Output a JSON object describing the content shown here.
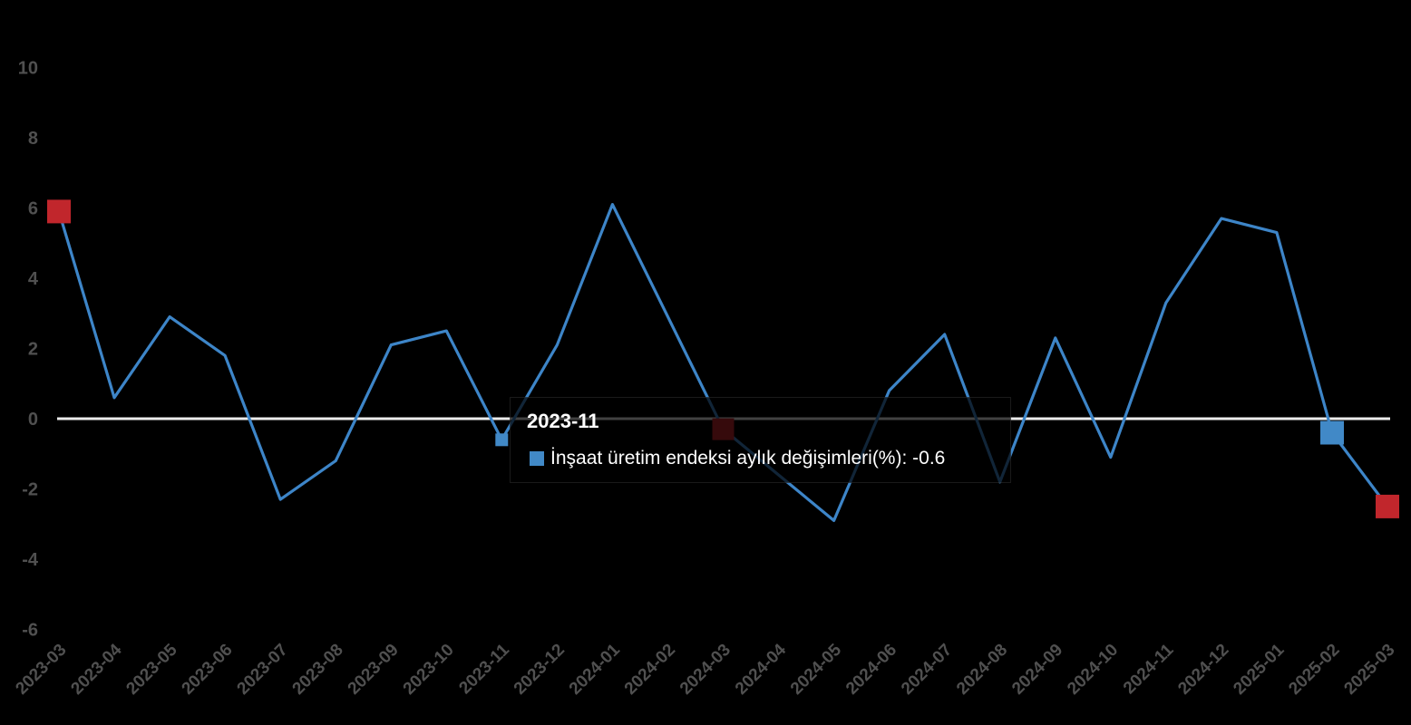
{
  "colors": {
    "background": "#000000",
    "line": "#3d85c8",
    "zero_line": "#ececec",
    "axis_label": "#505050",
    "marker_red": "#c1262c",
    "marker_blue": "#4189c7",
    "tooltip_bg": "rgba(0,0,0,0.72)",
    "tooltip_text": "#ffffff"
  },
  "tooltip": {
    "title": "2023-11",
    "text": "İnşaat üretim endeksi aylık değişimleri(%): -0.6",
    "legend_icon": "blue-square"
  },
  "chart_data": {
    "type": "line",
    "title": "",
    "xlabel": "",
    "ylabel": "",
    "categories": [
      "2023-03",
      "2023-04",
      "2023-05",
      "2023-06",
      "2023-07",
      "2023-08",
      "2023-09",
      "2023-10",
      "2023-11",
      "2023-12",
      "2024-01",
      "2024-02",
      "2024-03",
      "2024-04",
      "2024-05",
      "2024-06",
      "2024-07",
      "2024-08",
      "2024-09",
      "2024-10",
      "2024-11",
      "2024-12",
      "2025-01",
      "2025-02",
      "2025-03"
    ],
    "series": [
      {
        "name": "İnşaat üretim endeksi aylık değişimleri(%)",
        "values": [
          5.9,
          0.6,
          2.9,
          1.8,
          -2.3,
          -1.2,
          2.1,
          2.5,
          -0.6,
          2.1,
          6.1,
          2.9,
          -0.3,
          -1.6,
          -2.9,
          0.8,
          2.4,
          -1.8,
          2.3,
          -1.1,
          3.3,
          5.7,
          5.3,
          -0.4,
          -2.5
        ]
      }
    ],
    "ylim": [
      -6,
      10
    ],
    "yticks": [
      10,
      8,
      6,
      4,
      2,
      0,
      -2,
      -4,
      -6
    ],
    "grid": false,
    "zero_line": true,
    "legend_position": "tooltip-only",
    "highlighted_points": [
      {
        "category": "2023-03",
        "value": 5.9,
        "marker": "red-square-large"
      },
      {
        "category": "2023-11",
        "value": -0.6,
        "marker": "blue-square-small",
        "has_tooltip": true
      },
      {
        "category": "2024-03",
        "value": -0.3,
        "marker": "red-square-medium"
      },
      {
        "category": "2025-02",
        "value": -0.4,
        "marker": "blue-square-large"
      },
      {
        "category": "2025-03",
        "value": -2.5,
        "marker": "red-square-large"
      }
    ],
    "tooltip_point": {
      "category": "2023-11",
      "value": -0.6
    }
  }
}
